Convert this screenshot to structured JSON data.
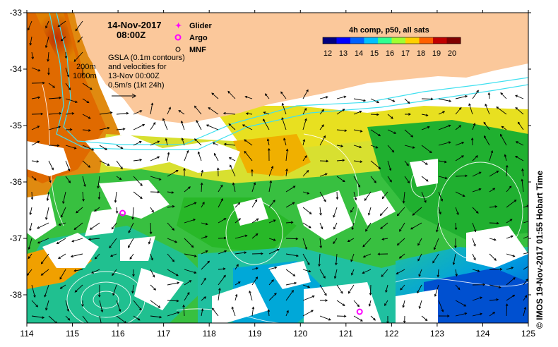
{
  "title": {
    "date": "14-Nov-2017",
    "time": "08:00Z"
  },
  "legend": {
    "glider": {
      "label": "Glider",
      "color": "#ff00ff"
    },
    "argo": {
      "label": "Argo",
      "color": "#ff00ff"
    },
    "mnf": {
      "label": "MNF",
      "color": "#000000"
    }
  },
  "gsla_note": {
    "line1": "GSLA (0.1m contours)",
    "line2": "and velocities for",
    "line3": "13-Nov 00:00Z",
    "line4": "0.5m/s (1kt 24h)"
  },
  "isobaths": {
    "a": "200m",
    "b": "1000m"
  },
  "colorbar": {
    "title": "4h comp, p50, all sats",
    "ticks": [
      "12",
      "13",
      "14",
      "15",
      "16",
      "17",
      "18",
      "19",
      "20"
    ],
    "colors": [
      "#00007f",
      "#0000ff",
      "#0060ff",
      "#00c0ff",
      "#30ff90",
      "#a0ff30",
      "#ffd000",
      "#ff6000",
      "#c00000",
      "#7f0000"
    ]
  },
  "credit": "© IMOS 19-Nov-2017 01:55 Hobart Time",
  "colors": {
    "land": "#fbc89b",
    "isobath": "#40e0f0",
    "contour": "#ffffff"
  },
  "chart_data": {
    "type": "map",
    "xlim": [
      114,
      125
    ],
    "ylim": [
      -38.5,
      -33
    ],
    "x_ticks": [
      114,
      115,
      116,
      117,
      118,
      119,
      120,
      121,
      122,
      123,
      124,
      125
    ],
    "y_ticks": [
      -33,
      -34,
      -35,
      -36,
      -37,
      -38
    ],
    "x_tick_labels": [
      "114",
      "115",
      "116",
      "117",
      "118",
      "119",
      "120",
      "121",
      "122",
      "123",
      "124",
      "125"
    ],
    "y_tick_labels": [
      "-33",
      "-34",
      "-35",
      "-36",
      "-37",
      "-38"
    ],
    "argo_floats": [
      {
        "lon": 116.1,
        "lat": -36.55
      },
      {
        "lon": 121.3,
        "lat": -38.3
      }
    ]
  }
}
